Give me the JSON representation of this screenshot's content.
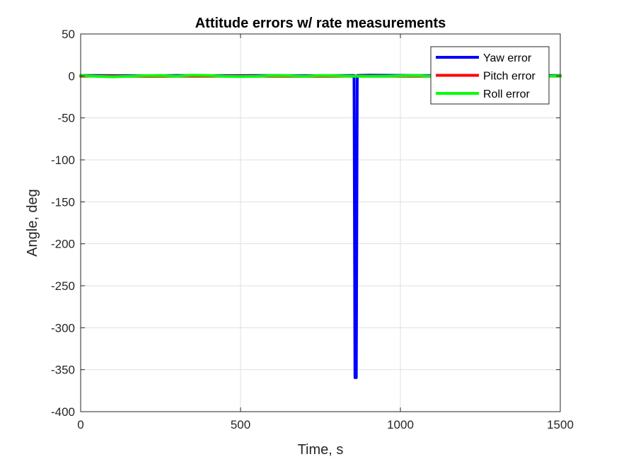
{
  "chart_data": {
    "type": "line",
    "title": "Attitude errors w/ rate measurements",
    "xlabel": "Time, s",
    "ylabel": "Angle, deg",
    "xlim": [
      0,
      1500
    ],
    "ylim": [
      -400,
      50
    ],
    "xticks": [
      0,
      500,
      1000,
      1500
    ],
    "yticks": [
      50,
      0,
      -50,
      -100,
      -150,
      -200,
      -250,
      -300,
      -350,
      -400
    ],
    "grid": true,
    "legend_position": "top-right",
    "series": [
      {
        "name": "Yaw error",
        "color": "#0000ff",
        "x": [
          0,
          100,
          200,
          300,
          400,
          500,
          600,
          700,
          800,
          855,
          858,
          860,
          862,
          865,
          900,
          1000,
          1100,
          1200,
          1300,
          1400,
          1500
        ],
        "y": [
          0.5,
          0.4,
          0.2,
          0.5,
          0.3,
          0.4,
          0.5,
          0.3,
          0.4,
          0.5,
          -359.5,
          -100,
          -359.5,
          0.5,
          0.8,
          0.6,
          0.4,
          0.5,
          0.3,
          0.4,
          0.5
        ]
      },
      {
        "name": "Pitch error",
        "color": "#ff0000",
        "x": [
          0,
          100,
          200,
          300,
          400,
          500,
          600,
          700,
          800,
          900,
          1000,
          1100,
          1200,
          1300,
          1400,
          1500
        ],
        "y": [
          -0.3,
          -0.2,
          -0.5,
          -0.3,
          -0.4,
          -0.2,
          -0.3,
          -0.5,
          -0.3,
          -0.2,
          -0.4,
          -0.3,
          -0.2,
          -0.4,
          -0.3,
          -0.2
        ]
      },
      {
        "name": "Roll error",
        "color": "#00ff00",
        "x": [
          0,
          50,
          100,
          150,
          200,
          250,
          300,
          350,
          400,
          450,
          500,
          550,
          600,
          650,
          700,
          750,
          800,
          850,
          900,
          950,
          1000,
          1050,
          1100,
          1150,
          1200,
          1250,
          1300,
          1350,
          1400,
          1450,
          1500
        ],
        "y": [
          0.5,
          -0.5,
          -1,
          -0.5,
          0.3,
          0.5,
          -0.3,
          0.8,
          0.5,
          -0.5,
          -0.8,
          -0.5,
          0.5,
          0.3,
          -0.5,
          0.5,
          0.2,
          -0.3,
          -0.5,
          -0.3,
          0.2,
          0.5,
          -0.5,
          -0.3,
          0.5,
          0.3,
          -0.5,
          0.5,
          0.3,
          -0.3,
          0.2
        ]
      }
    ]
  }
}
